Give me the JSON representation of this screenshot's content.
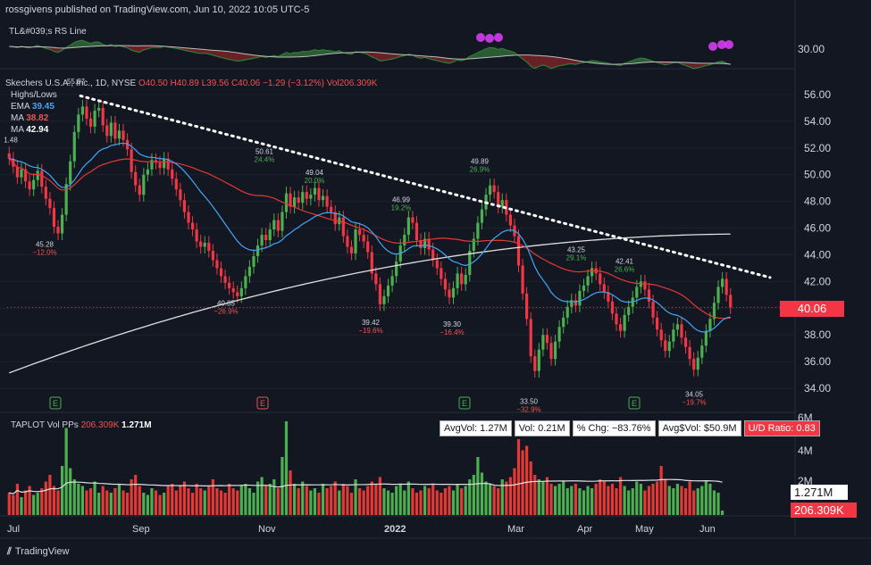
{
  "header": {
    "published": "rossgivens published on TradingView.com, Jun 10, 2022 10:05 UTC-5"
  },
  "rs_pane": {
    "title": "TL&#039;s RS Line",
    "axis_label": "30.00"
  },
  "price_pane": {
    "symbol_line": "Skechers U.S.A., Inc., 1D, NYSE",
    "ohlc": {
      "o": "O40.50",
      "h": "H40.89",
      "l": "L39.56",
      "c": "C40.06",
      "chg": "−1.29 (−3.12%)",
      "vol": "Vol206.309K"
    },
    "indicators": [
      {
        "label": "Highs/Lows",
        "value": ""
      },
      {
        "label": "EMA",
        "value": "39.45",
        "color": "#42a5f5"
      },
      {
        "label": "MA",
        "value": "38.82",
        "color": "#ef5350"
      },
      {
        "label": "MA",
        "value": "42.94",
        "color": "#ffffff"
      }
    ],
    "last_price": "40.06"
  },
  "volume_pane": {
    "title": "TAPLOT Vol PPs",
    "vol": "206.309K",
    "avg": "1.271M",
    "stats": {
      "avgvol": "AvgVol: 1.27M",
      "vol": "Vol: 0.21M",
      "pct": "% Chg: −83.76%",
      "avgdollar": "Avg$Vol: $50.9M",
      "ud": "U/D Ratio: 0.83"
    },
    "axis_labels": [
      "6M",
      "4M",
      "2M"
    ],
    "tag_avg": "1.271M",
    "tag_vol": "206.309K"
  },
  "footer": {
    "brand": "TradingView"
  },
  "chart_data": {
    "type": "candlestick",
    "y_ticks": [
      56.0,
      54.0,
      52.0,
      50.0,
      48.0,
      46.0,
      44.0,
      42.0,
      40.0,
      38.0,
      36.0,
      34.0
    ],
    "ylim": [
      32.2,
      57.2
    ],
    "x_labels": [
      "Jul",
      "Sep",
      "Nov",
      "2022",
      "Mar",
      "Apr",
      "May",
      "Jun"
    ],
    "annotations": [
      {
        "label": "55.87",
        "pct": "",
        "type": "high"
      },
      {
        "label": "1.48",
        "pct": "",
        "type": "high"
      },
      {
        "label": "45.28",
        "pct": "−12.0%",
        "type": "low"
      },
      {
        "label": "50.61",
        "pct": "24.4%",
        "type": "high"
      },
      {
        "label": "40.85",
        "pct": "−26.9%",
        "type": "low"
      },
      {
        "label": "49.04",
        "pct": "20.0%",
        "type": "high"
      },
      {
        "label": "39.42",
        "pct": "−19.6%",
        "type": "low"
      },
      {
        "label": "46.99",
        "pct": "19.2%",
        "type": "high"
      },
      {
        "label": "39.30",
        "pct": "−16.4%",
        "type": "low"
      },
      {
        "label": "49.89",
        "pct": "26.9%",
        "type": "high"
      },
      {
        "label": "33.50",
        "pct": "−32.9%",
        "type": "low"
      },
      {
        "label": "43.25",
        "pct": "29.1%",
        "type": "high"
      },
      {
        "label": "42.41",
        "pct": "26.6%",
        "type": "high"
      },
      {
        "label": "34.05",
        "pct": "−19.7%",
        "type": "low"
      }
    ],
    "earnings_markers": [
      "E",
      "E",
      "E",
      "E"
    ],
    "closes": [
      51.2,
      50.6,
      49.8,
      50.4,
      49.5,
      48.9,
      49.6,
      50.3,
      49.1,
      48.2,
      47.5,
      46.1,
      45.6,
      47.0,
      49.3,
      51.0,
      53.2,
      54.5,
      55.1,
      54.2,
      53.6,
      54.8,
      55.0,
      53.7,
      52.9,
      53.9,
      52.7,
      53.3,
      52.6,
      51.9,
      50.2,
      49.2,
      48.5,
      50.0,
      50.4,
      51.1,
      50.9,
      50.5,
      51.2,
      50.4,
      49.7,
      48.9,
      48.1,
      47.2,
      46.4,
      45.9,
      45.0,
      44.6,
      44.9,
      44.3,
      43.6,
      43.0,
      42.4,
      41.9,
      41.5,
      41.2,
      40.9,
      41.5,
      42.4,
      43.1,
      43.9,
      44.7,
      45.5,
      45.1,
      45.9,
      46.6,
      45.8,
      47.2,
      48.6,
      47.6,
      48.3,
      47.9,
      48.7,
      48.2,
      48.5,
      49.0,
      48.1,
      48.4,
      47.6,
      47.2,
      46.3,
      46.8,
      45.4,
      44.6,
      44.1,
      45.9,
      45.5,
      45.0,
      44.2,
      42.6,
      41.8,
      40.3,
      40.9,
      41.7,
      42.4,
      43.5,
      44.7,
      45.5,
      46.8,
      46.4,
      45.1,
      44.5,
      45.2,
      44.4,
      43.6,
      43.0,
      42.2,
      41.4,
      40.8,
      41.5,
      42.6,
      41.8,
      42.5,
      44.3,
      45.2,
      46.4,
      47.4,
      48.5,
      49.2,
      48.7,
      47.6,
      48.1,
      47.0,
      46.2,
      45.4,
      43.2,
      41.1,
      39.2,
      36.4,
      35.3,
      36.9,
      38.0,
      37.4,
      36.2,
      37.5,
      38.6,
      39.3,
      40.1,
      40.6,
      40.2,
      41.3,
      41.7,
      42.4,
      43.0,
      42.6,
      41.8,
      41.2,
      40.5,
      39.6,
      38.8,
      38.3,
      39.5,
      40.1,
      40.8,
      41.6,
      42.0,
      41.4,
      40.5,
      39.3,
      38.4,
      37.6,
      36.8,
      37.5,
      38.4,
      38.8,
      37.8,
      37.1,
      36.2,
      35.4,
      36.3,
      37.2,
      38.3,
      39.2,
      40.4,
      41.6,
      42.2,
      41.0,
      40.06
    ],
    "volumes": [
      1.0,
      0.9,
      1.4,
      0.8,
      1.1,
      1.3,
      0.9,
      1.0,
      1.2,
      1.5,
      1.8,
      1.3,
      1.1,
      2.2,
      3.9,
      2.1,
      1.6,
      1.4,
      1.3,
      1.1,
      1.2,
      1.5,
      1.0,
      1.3,
      1.1,
      1.0,
      1.2,
      1.4,
      1.1,
      1.0,
      1.6,
      1.8,
      1.3,
      1.0,
      0.9,
      1.2,
      1.1,
      0.9,
      1.0,
      1.3,
      1.4,
      1.1,
      1.3,
      1.5,
      1.2,
      1.0,
      1.4,
      1.2,
      1.1,
      1.3,
      1.6,
      1.2,
      1.1,
      1.0,
      1.4,
      1.2,
      1.1,
      1.3,
      1.4,
      1.2,
      1.0,
      1.5,
      1.7,
      1.3,
      1.4,
      1.6,
      1.2,
      2.6,
      4.2,
      2.0,
      1.4,
      1.2,
      1.5,
      1.3,
      1.1,
      1.2,
      1.0,
      1.4,
      1.2,
      1.3,
      1.5,
      1.1,
      1.4,
      1.3,
      1.0,
      1.6,
      1.2,
      1.1,
      1.3,
      1.5,
      1.4,
      1.7,
      1.2,
      1.1,
      1.0,
      1.3,
      1.4,
      1.1,
      1.5,
      1.2,
      1.0,
      1.1,
      1.3,
      1.2,
      1.4,
      1.1,
      1.0,
      1.2,
      1.3,
      1.1,
      1.4,
      1.2,
      1.3,
      1.6,
      1.8,
      2.6,
      1.9,
      1.5,
      1.4,
      1.3,
      1.2,
      1.6,
      1.5,
      1.7,
      2.1,
      3.4,
      2.9,
      3.1,
      2.4,
      1.8,
      1.6,
      1.5,
      1.7,
      1.4,
      1.3,
      1.4,
      1.5,
      1.2,
      1.3,
      1.4,
      1.2,
      1.1,
      1.3,
      1.2,
      1.4,
      1.6,
      1.5,
      1.3,
      1.4,
      1.2,
      1.7,
      1.3,
      1.1,
      1.2,
      1.5,
      1.4,
      1.1,
      1.3,
      1.4,
      1.5,
      2.2,
      1.6,
      1.3,
      1.2,
      1.4,
      1.3,
      1.2,
      1.5,
      1.1,
      1.2,
      1.3,
      1.5,
      1.4,
      1.1,
      1.0,
      0.2
    ]
  }
}
